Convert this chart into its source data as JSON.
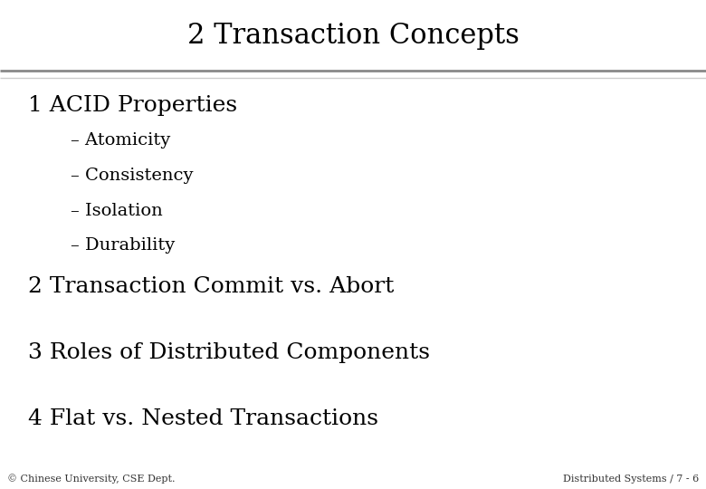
{
  "title": "2 Transaction Concepts",
  "title_fontsize": 22,
  "title_color": "#000000",
  "background_color": "#ffffff",
  "separator_color_top": "#888888",
  "separator_color_bottom": "#cccccc",
  "section1": "1 ACID Properties",
  "section1_fontsize": 18,
  "bullets": [
    "– Atomicity",
    "– Consistency",
    "– Isolation",
    "– Durability"
  ],
  "bullet_fontsize": 14,
  "section2": "2 Transaction Commit vs. Abort",
  "section2_fontsize": 18,
  "section3": "3 Roles of Distributed Components",
  "section3_fontsize": 18,
  "section4": "4 Flat vs. Nested Transactions",
  "section4_fontsize": 18,
  "footer_left": "© Chinese University, CSE Dept.",
  "footer_right": "Distributed Systems / 7 - 6",
  "footer_fontsize": 8,
  "font_family": "serif"
}
